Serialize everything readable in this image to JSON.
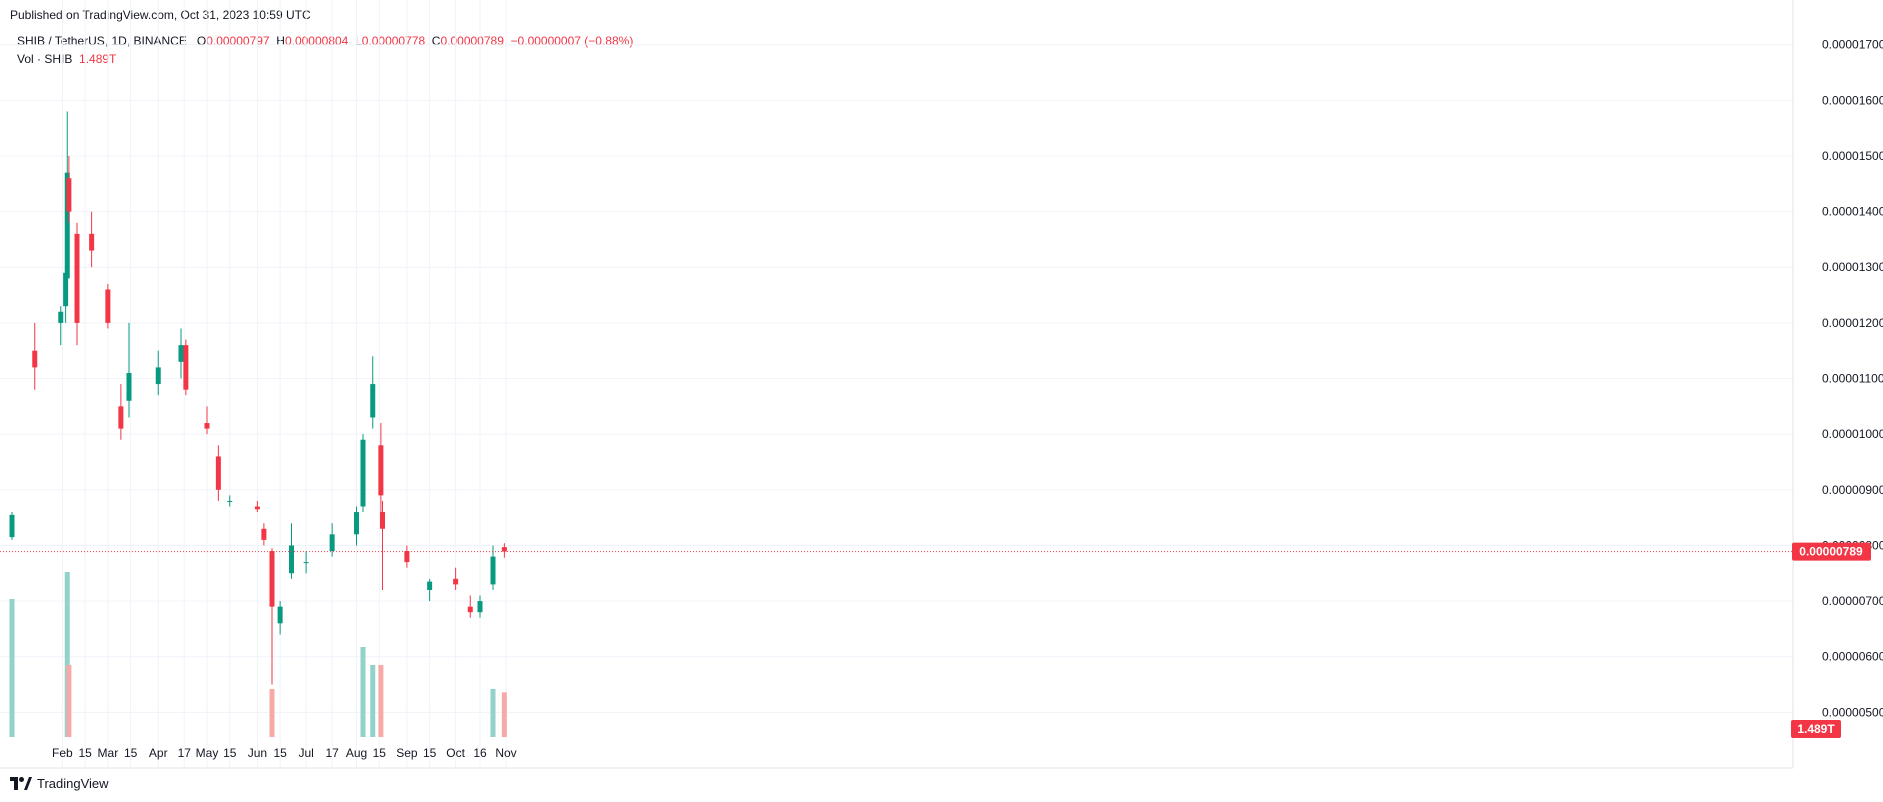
{
  "header": {
    "published": "Published on TradingView.com, Oct 31, 2023 10:59 UTC"
  },
  "legend": {
    "symbol": "SHIB / TetherUS, 1D, BINANCE",
    "o_label": "O",
    "o_value": "0.00000797",
    "h_label": "H",
    "h_value": "0.00000804",
    "l_label": "L",
    "l_value": "0.00000778",
    "c_label": "C",
    "c_value": "0.00000789",
    "change": "−0.00000007 (−0.88%)",
    "vol_label": "Vol · SHIB",
    "vol_value": "1.489T"
  },
  "footer": {
    "brand": "TradingView"
  },
  "colors": {
    "up": "#089981",
    "down": "#f23645",
    "up_vol": "#92d2c9",
    "down_vol": "#f7a9a7",
    "grid": "#f0f3fa"
  },
  "chart_data": {
    "type": "candlestick",
    "symbol": "SHIB / TetherUS",
    "interval": "1D",
    "exchange": "BINANCE",
    "ylim": [
      4e-06,
      1.73e-05
    ],
    "yticks": [
      {
        "value": 5e-06,
        "label": "0.00000500"
      },
      {
        "value": 6e-06,
        "label": "0.00000600"
      },
      {
        "value": 7e-06,
        "label": "0.00000700"
      },
      {
        "value": 8e-06,
        "label": "0.00000800"
      },
      {
        "value": 9e-06,
        "label": "0.00000900"
      },
      {
        "value": 1e-05,
        "label": "0.00001000"
      },
      {
        "value": 1.1e-05,
        "label": "0.00001100"
      },
      {
        "value": 1.2e-05,
        "label": "0.00001200"
      },
      {
        "value": 1.3e-05,
        "label": "0.00001300"
      },
      {
        "value": 1.4e-05,
        "label": "0.00001400"
      },
      {
        "value": 1.5e-05,
        "label": "0.00001500"
      },
      {
        "value": 1.6e-05,
        "label": "0.00001600"
      },
      {
        "value": 1.7e-05,
        "label": "0.00001700"
      }
    ],
    "xticks": [
      {
        "date": "2023-02-01",
        "label": "Feb"
      },
      {
        "date": "2023-02-15",
        "label": "15"
      },
      {
        "date": "2023-03-01",
        "label": "Mar"
      },
      {
        "date": "2023-03-15",
        "label": "15"
      },
      {
        "date": "2023-04-01",
        "label": "Apr"
      },
      {
        "date": "2023-04-17",
        "label": "17"
      },
      {
        "date": "2023-05-01",
        "label": "May"
      },
      {
        "date": "2023-05-15",
        "label": "15"
      },
      {
        "date": "2023-06-01",
        "label": "Jun"
      },
      {
        "date": "2023-06-15",
        "label": "15"
      },
      {
        "date": "2023-07-01",
        "label": "Jul"
      },
      {
        "date": "2023-07-17",
        "label": "17"
      },
      {
        "date": "2023-08-01",
        "label": "Aug"
      },
      {
        "date": "2023-08-15",
        "label": "15"
      },
      {
        "date": "2023-09-01",
        "label": "Sep"
      },
      {
        "date": "2023-09-15",
        "label": "15"
      },
      {
        "date": "2023-10-01",
        "label": "Oct"
      },
      {
        "date": "2023-10-16",
        "label": "16"
      },
      {
        "date": "2023-11-01",
        "label": "Nov"
      }
    ],
    "last_price": {
      "value": 7.89e-06,
      "label": "0.00000789"
    },
    "last_volume": {
      "label": "1.489T"
    },
    "x_start": "2023-01-01",
    "x_end": "2023-11-09",
    "series": [
      {
        "name": "SHIB / TetherUS",
        "type": "ohlc",
        "fields": [
          "date",
          "open",
          "high",
          "low",
          "close"
        ],
        "values": [
          [
            "2023-01-01",
            8.15e-06,
            8.6e-06,
            8.1e-06,
            8.55e-06
          ],
          [
            "2023-01-15",
            1.15e-05,
            1.2e-05,
            1.08e-05,
            1.12e-05
          ],
          [
            "2023-01-31",
            1.2e-05,
            1.23e-05,
            1.16e-05,
            1.22e-05
          ],
          [
            "2023-02-03",
            1.23e-05,
            1.3e-05,
            1.2e-05,
            1.29e-05
          ],
          [
            "2023-02-04",
            1.28e-05,
            1.58e-05,
            1.27e-05,
            1.47e-05
          ],
          [
            "2023-02-05",
            1.46e-05,
            1.5e-05,
            1.38e-05,
            1.4e-05
          ],
          [
            "2023-02-10",
            1.36e-05,
            1.38e-05,
            1.16e-05,
            1.2e-05
          ],
          [
            "2023-02-19",
            1.36e-05,
            1.4e-05,
            1.3e-05,
            1.33e-05
          ],
          [
            "2023-03-01",
            1.26e-05,
            1.27e-05,
            1.19e-05,
            1.2e-05
          ],
          [
            "2023-03-09",
            1.05e-05,
            1.09e-05,
            9.9e-06,
            1.01e-05
          ],
          [
            "2023-03-14",
            1.06e-05,
            1.2e-05,
            1.03e-05,
            1.11e-05
          ],
          [
            "2023-04-01",
            1.09e-05,
            1.15e-05,
            1.07e-05,
            1.12e-05
          ],
          [
            "2023-04-15",
            1.13e-05,
            1.19e-05,
            1.1e-05,
            1.16e-05
          ],
          [
            "2023-04-18",
            1.16e-05,
            1.17e-05,
            1.07e-05,
            1.08e-05
          ],
          [
            "2023-05-01",
            1.02e-05,
            1.05e-05,
            1e-05,
            1.01e-05
          ],
          [
            "2023-05-08",
            9.6e-06,
            9.8e-06,
            8.8e-06,
            9e-06
          ],
          [
            "2023-05-15",
            8.8e-06,
            8.9e-06,
            8.7e-06,
            8.8e-06
          ],
          [
            "2023-06-01",
            8.7e-06,
            8.8e-06,
            8.6e-06,
            8.65e-06
          ],
          [
            "2023-06-05",
            8.3e-06,
            8.4e-06,
            8e-06,
            8.1e-06
          ],
          [
            "2023-06-10",
            7.9e-06,
            7.95e-06,
            5.5e-06,
            6.9e-06
          ],
          [
            "2023-06-15",
            6.6e-06,
            7e-06,
            6.4e-06,
            6.9e-06
          ],
          [
            "2023-06-22",
            7.5e-06,
            8.4e-06,
            7.4e-06,
            8e-06
          ],
          [
            "2023-07-01",
            7.7e-06,
            7.9e-06,
            7.5e-06,
            7.7e-06
          ],
          [
            "2023-07-17",
            7.9e-06,
            8.4e-06,
            7.8e-06,
            8.2e-06
          ],
          [
            "2023-08-01",
            8.2e-06,
            8.7e-06,
            8e-06,
            8.6e-06
          ],
          [
            "2023-08-05",
            8.7e-06,
            1e-05,
            8.6e-06,
            9.9e-06
          ],
          [
            "2023-08-11",
            1.03e-05,
            1.14e-05,
            1.01e-05,
            1.09e-05
          ],
          [
            "2023-08-16",
            9.8e-06,
            1.02e-05,
            8.5e-06,
            8.9e-06
          ],
          [
            "2023-08-17",
            8.6e-06,
            8.8e-06,
            7.2e-06,
            8.3e-06
          ],
          [
            "2023-09-01",
            7.9e-06,
            8e-06,
            7.6e-06,
            7.7e-06
          ],
          [
            "2023-09-15",
            7.2e-06,
            7.4e-06,
            7e-06,
            7.35e-06
          ],
          [
            "2023-10-01",
            7.4e-06,
            7.6e-06,
            7.2e-06,
            7.3e-06
          ],
          [
            "2023-10-10",
            6.9e-06,
            7.1e-06,
            6.7e-06,
            6.8e-06
          ],
          [
            "2023-10-16",
            6.8e-06,
            7.1e-06,
            6.7e-06,
            7e-06
          ],
          [
            "2023-10-24",
            7.3e-06,
            8e-06,
            7.2e-06,
            7.8e-06
          ],
          [
            "2023-10-31",
            7.97e-06,
            8.04e-06,
            7.78e-06,
            7.89e-06
          ]
        ]
      },
      {
        "name": "Vol · SHIB",
        "type": "volume",
        "fields": [
          "date",
          "value_T",
          "direction"
        ],
        "values": [
          [
            "2023-01-01",
            4.6,
            "up"
          ],
          [
            "2023-02-04",
            5.5,
            "up"
          ],
          [
            "2023-02-05",
            2.4,
            "down"
          ],
          [
            "2023-06-10",
            1.6,
            "down"
          ],
          [
            "2023-08-05",
            3.0,
            "up"
          ],
          [
            "2023-08-11",
            2.4,
            "up"
          ],
          [
            "2023-08-16",
            2.4,
            "down"
          ],
          [
            "2023-10-24",
            1.6,
            "up"
          ],
          [
            "2023-10-31",
            1.489,
            "down"
          ]
        ]
      }
    ]
  }
}
